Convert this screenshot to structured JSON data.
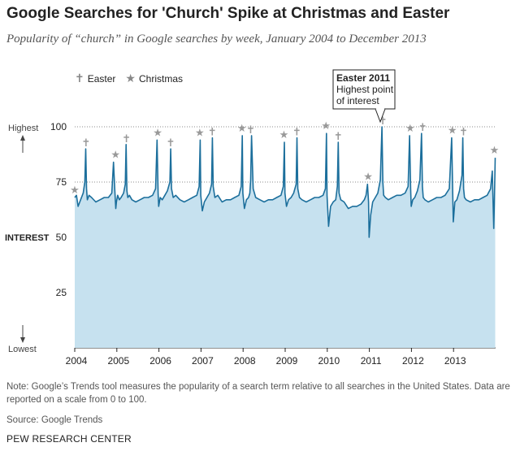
{
  "header": {
    "title": "Google Searches for 'Church' Spike at Christmas and Easter",
    "subtitle": "Popularity of “church” in Google searches by week, January 2004 to December 2013"
  },
  "legend": {
    "items": [
      {
        "label": "Easter",
        "icon": "cross-icon",
        "glyph": "✝"
      },
      {
        "label": "Christmas",
        "icon": "star-icon",
        "glyph": "★"
      }
    ]
  },
  "colors": {
    "line": "#1c6f9c",
    "area": "#c6e1ef",
    "marker": "#999999"
  },
  "axis_labels": {
    "highest": "Highest",
    "interest": "INTEREST",
    "lowest": "Lowest"
  },
  "callout": {
    "title": "Easter 2011",
    "line1": "Highest point",
    "line2": "of interest"
  },
  "chart_data": {
    "type": "area",
    "title": "Google Searches for 'Church' Spike at Christmas and Easter",
    "subtitle": "Popularity of “church” in Google searches by week, January 2004 to December 2013",
    "ylabel": "INTEREST",
    "ylim": [
      0,
      100
    ],
    "yticks": [
      25,
      50,
      75,
      100
    ],
    "xlim": [
      2004.0,
      2014.0
    ],
    "xticks": [
      "2004",
      "2005",
      "2006",
      "2007",
      "2008",
      "2009",
      "2010",
      "2011",
      "2012",
      "2013"
    ],
    "grid": true,
    "legend_position": "top-left",
    "series": [
      {
        "x": [
          2004.0,
          2004.04,
          2004.08,
          2004.12,
          2004.16,
          2004.2,
          2004.24,
          2004.26,
          2004.28,
          2004.3,
          2004.34,
          2004.4,
          2004.5,
          2004.6,
          2004.7,
          2004.8,
          2004.88,
          2004.92,
          2004.95,
          2004.975,
          2004.99,
          2005.02,
          2005.06,
          2005.1,
          2005.16,
          2005.2,
          2005.22,
          2005.24,
          2005.26,
          2005.3,
          2005.36,
          2005.45,
          2005.55,
          2005.65,
          2005.75,
          2005.85,
          2005.92,
          2005.955,
          2005.98,
          2005.995,
          2006.03,
          2006.08,
          2006.14,
          2006.2,
          2006.26,
          2006.28,
          2006.3,
          2006.34,
          2006.4,
          2006.5,
          2006.6,
          2006.7,
          2006.8,
          2006.9,
          2006.955,
          2006.98,
          2006.995,
          2007.03,
          2007.08,
          2007.14,
          2007.2,
          2007.25,
          2007.27,
          2007.29,
          2007.33,
          2007.4,
          2007.5,
          2007.6,
          2007.7,
          2007.8,
          2007.9,
          2007.955,
          2007.98,
          2007.995,
          2008.03,
          2008.08,
          2008.13,
          2008.16,
          2008.18,
          2008.2,
          2008.24,
          2008.3,
          2008.4,
          2008.5,
          2008.6,
          2008.7,
          2008.8,
          2008.9,
          2008.955,
          2008.98,
          2008.995,
          2009.03,
          2009.08,
          2009.14,
          2009.2,
          2009.26,
          2009.28,
          2009.3,
          2009.34,
          2009.4,
          2009.5,
          2009.6,
          2009.7,
          2009.8,
          2009.9,
          2009.955,
          2009.98,
          2009.995,
          2010.03,
          2010.08,
          2010.14,
          2010.2,
          2010.24,
          2010.26,
          2010.28,
          2010.32,
          2010.4,
          2010.5,
          2010.6,
          2010.7,
          2010.8,
          2010.88,
          2010.92,
          2010.955,
          2010.98,
          2010.995,
          2011.03,
          2011.08,
          2011.14,
          2011.2,
          2011.26,
          2011.3,
          2011.32,
          2011.34,
          2011.38,
          2011.45,
          2011.55,
          2011.65,
          2011.75,
          2011.85,
          2011.92,
          2011.955,
          2011.98,
          2011.995,
          2012.03,
          2012.08,
          2012.14,
          2012.2,
          2012.24,
          2012.26,
          2012.28,
          2012.32,
          2012.4,
          2012.5,
          2012.6,
          2012.7,
          2012.8,
          2012.9,
          2012.955,
          2012.98,
          2012.995,
          2013.03,
          2013.08,
          2013.14,
          2013.2,
          2013.22,
          2013.24,
          2013.26,
          2013.3,
          2013.4,
          2013.5,
          2013.6,
          2013.7,
          2013.8,
          2013.88,
          2013.92,
          2013.955,
          2013.97,
          2013.99
        ],
        "values": [
          68,
          69,
          64,
          66,
          68,
          70,
          75,
          90,
          72,
          67,
          69,
          68,
          66,
          67,
          68,
          68,
          70,
          84,
          72,
          63,
          66,
          69,
          67,
          68,
          70,
          74,
          92,
          71,
          68,
          69,
          67,
          66,
          67,
          68,
          68,
          69,
          72,
          94,
          70,
          64,
          68,
          67,
          69,
          71,
          75,
          90,
          72,
          68,
          69,
          67,
          66,
          67,
          68,
          69,
          73,
          94,
          69,
          62,
          66,
          68,
          70,
          74,
          95,
          73,
          68,
          69,
          66,
          67,
          67,
          68,
          69,
          73,
          96,
          70,
          63,
          67,
          68,
          70,
          76,
          96,
          72,
          68,
          67,
          66,
          67,
          67,
          68,
          69,
          73,
          93,
          70,
          64,
          67,
          68,
          70,
          74,
          95,
          72,
          68,
          67,
          66,
          67,
          68,
          68,
          69,
          72,
          97,
          69,
          55,
          64,
          66,
          67,
          73,
          93,
          70,
          67,
          66,
          63,
          64,
          64,
          65,
          67,
          69,
          74,
          66,
          50,
          60,
          66,
          68,
          70,
          76,
          100,
          75,
          69,
          68,
          67,
          68,
          69,
          69,
          70,
          73,
          96,
          72,
          64,
          67,
          68,
          71,
          76,
          97,
          73,
          68,
          67,
          66,
          67,
          68,
          68,
          69,
          72,
          95,
          70,
          57,
          66,
          67,
          71,
          78,
          95,
          72,
          68,
          67,
          66,
          67,
          67,
          68,
          69,
          72,
          80,
          54,
          65,
          86
        ]
      }
    ],
    "annotations": [
      {
        "x": 2011.3,
        "y": 100,
        "text": "Easter 2011 Highest point of interest"
      }
    ],
    "easter_markers": [
      2004.27,
      2005.23,
      2006.28,
      2007.27,
      2008.18,
      2009.28,
      2010.26,
      2011.32,
      2012.27,
      2013.24
    ],
    "christmas_markers": [
      2003.98,
      2004.97,
      2005.97,
      2006.97,
      2007.97,
      2008.97,
      2009.97,
      2010.97,
      2011.97,
      2012.97,
      2013.97
    ]
  },
  "footer": {
    "note_line1": "Note: Google’s Trends tool measures the popularity of a search term relative to all searches in the United States. Data are",
    "note_line2": "reported on a scale from 0 to 100.",
    "source": "Source: Google Trends",
    "org": "PEW RESEARCH CENTER"
  }
}
